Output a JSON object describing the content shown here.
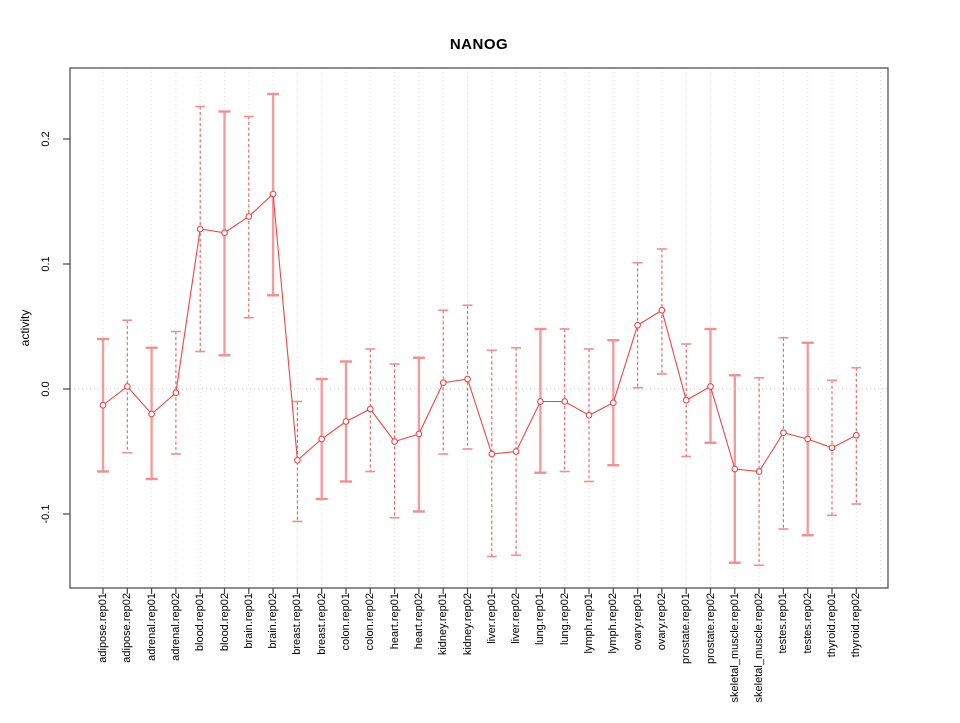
{
  "chart_data": {
    "type": "line",
    "title": "NANOG",
    "ylabel": "activity",
    "xlabel": "",
    "legend_position": "none",
    "grid": "vertical dotted gridline per category plus dotted horizontal zero line",
    "ylim": [
      -0.16,
      0.257
    ],
    "yticks": {
      "values": [
        0.2,
        0.1,
        0.0,
        -0.1
      ],
      "labels": [
        "0.2",
        "0.1",
        "0.0",
        "-0.1"
      ]
    },
    "categories": [
      "adipose.rep01",
      "adipose.rep02",
      "adrenal.rep01",
      "adrenal.rep02",
      "blood.rep01",
      "blood.rep02",
      "brain.rep01",
      "brain.rep02",
      "breast.rep01",
      "breast.rep02",
      "colon.rep01",
      "colon.rep02",
      "heart.rep01",
      "heart.rep02",
      "kidney.rep01",
      "kidney.rep02",
      "liver.rep01",
      "liver.rep02",
      "lung.rep01",
      "lung.rep02",
      "lymph.rep01",
      "lymph.rep02",
      "ovary.rep01",
      "ovary.rep02",
      "prostate.rep01",
      "prostate.rep02",
      "skeletal_muscle.rep01",
      "skeletal_muscle.rep02",
      "testes.rep01",
      "testes.rep02",
      "thyroid.rep01",
      "thyroid.rep02"
    ],
    "series": [
      {
        "name": "activity",
        "marker": "open-circle",
        "values": [
          -0.013,
          0.002,
          -0.02,
          -0.003,
          0.128,
          0.125,
          0.138,
          0.156,
          -0.057,
          -0.04,
          -0.026,
          -0.016,
          -0.042,
          -0.036,
          0.005,
          0.008,
          -0.052,
          -0.05,
          -0.01,
          -0.01,
          -0.021,
          -0.011,
          0.051,
          0.063,
          -0.009,
          0.002,
          -0.064,
          -0.066,
          -0.035,
          -0.04,
          -0.047,
          -0.037
        ],
        "err_hi": [
          0.04,
          0.055,
          0.033,
          0.046,
          0.226,
          0.222,
          0.218,
          0.236,
          -0.01,
          0.008,
          0.022,
          0.032,
          0.02,
          0.025,
          0.063,
          0.067,
          0.031,
          0.033,
          0.048,
          0.048,
          0.032,
          0.039,
          0.101,
          0.112,
          0.036,
          0.048,
          0.011,
          0.009,
          0.041,
          0.037,
          0.007,
          0.017
        ],
        "err_lo": [
          -0.066,
          -0.051,
          -0.072,
          -0.052,
          0.03,
          0.027,
          0.057,
          0.075,
          -0.106,
          -0.088,
          -0.074,
          -0.066,
          -0.103,
          -0.098,
          -0.052,
          -0.048,
          -0.134,
          -0.133,
          -0.067,
          -0.066,
          -0.074,
          -0.061,
          0.001,
          0.012,
          -0.054,
          -0.043,
          -0.139,
          -0.141,
          -0.112,
          -0.117,
          -0.101,
          -0.092
        ],
        "bar_styles": [
          "solid",
          "dashed",
          "solid",
          "dashed",
          "dashed",
          "solid",
          "dashed",
          "solid",
          "dashed",
          "solid",
          "solid",
          "dashed",
          "dashed",
          "solid",
          "dashed",
          "dashed",
          "dashed",
          "dashed",
          "solid",
          "dashed",
          "dashed",
          "solid",
          "dashed",
          "dashed",
          "dashed",
          "solid",
          "solid",
          "dashed",
          "dashed",
          "solid",
          "dashed",
          "dashed"
        ]
      }
    ],
    "colors": {
      "line": "#e84848",
      "marker_stroke": "#e84848",
      "marker_fill": "#ffffff",
      "error_bar_solid": "#f49c9c",
      "error_bar_dashed": "#e66161",
      "error_cap": "#f09090",
      "gridline": "#dedede",
      "zero_line": "#c8c8c8",
      "axis": "#444444"
    }
  }
}
